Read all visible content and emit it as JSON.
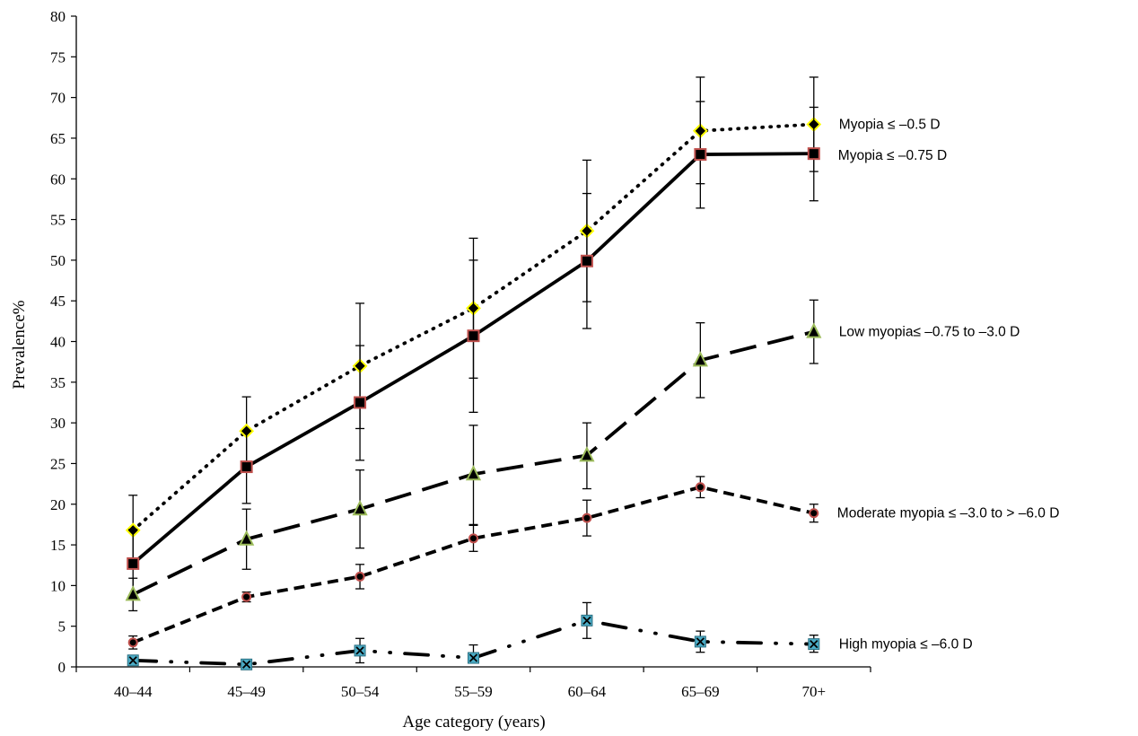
{
  "chart_data": {
    "type": "line",
    "xlabel": "Age category (years)",
    "ylabel": "Prevalence%",
    "categories": [
      "40–44",
      "45–49",
      "50–54",
      "55–59",
      "60–64",
      "65–69",
      "70+"
    ],
    "ylim": [
      0,
      80
    ],
    "yticks": [
      "0",
      "5",
      "10",
      "15",
      "20",
      "25",
      "30",
      "35",
      "40",
      "45",
      "50",
      "55",
      "60",
      "65",
      "70",
      "75",
      "80"
    ],
    "grid": false,
    "legend": "inline labels at right end of each line",
    "series": [
      {
        "name": "Myopia ≤ –0.5 D",
        "values": [
          16.8,
          29.0,
          37.0,
          44.1,
          53.6,
          65.9,
          66.7
        ],
        "err_low": [
          12.7,
          24.6,
          29.3,
          35.5,
          44.9,
          59.4,
          60.9
        ],
        "err_high": [
          21.1,
          33.2,
          44.7,
          52.7,
          62.3,
          72.5,
          72.5
        ],
        "marker": "diamond",
        "marker_fill": "#ffff00",
        "marker_stroke": "#a6a600",
        "dash": "dotted"
      },
      {
        "name": "Myopia ≤ –0.75 D",
        "values": [
          12.7,
          24.6,
          32.5,
          40.7,
          49.9,
          63.0,
          63.1
        ],
        "err_low": [
          8.6,
          20.1,
          25.4,
          31.3,
          41.6,
          56.4,
          57.3
        ],
        "err_high": [
          16.9,
          29.0,
          39.5,
          50.0,
          58.2,
          69.5,
          68.8
        ],
        "marker": "square",
        "marker_fill": "#000000",
        "marker_stroke": "#c0504d",
        "dash": "solid"
      },
      {
        "name": "Low myopia≤ –0.75 to –3.0 D",
        "values": [
          8.9,
          15.7,
          19.4,
          23.7,
          26.0,
          37.7,
          41.2
        ],
        "err_low": [
          6.9,
          12.0,
          14.6,
          17.5,
          21.9,
          33.1,
          37.3
        ],
        "err_high": [
          10.9,
          19.4,
          24.2,
          29.7,
          30.0,
          42.3,
          45.1
        ],
        "marker": "triangle",
        "marker_fill": "#000000",
        "marker_stroke": "#9bbb59",
        "dash": "long-dash"
      },
      {
        "name": "Moderate myopia ≤ –3.0 to > –6.0 D",
        "values": [
          3.0,
          8.6,
          11.1,
          15.8,
          18.3,
          22.1,
          18.9
        ],
        "err_low": [
          2.2,
          8.0,
          9.6,
          14.2,
          16.1,
          20.8,
          17.8
        ],
        "err_high": [
          3.8,
          9.2,
          12.6,
          17.4,
          20.5,
          23.4,
          20.0
        ],
        "marker": "circle",
        "marker_fill": "#000000",
        "marker_stroke": "#c0504d",
        "dash": "short-dash"
      },
      {
        "name": "High myopia ≤ –6.0 D",
        "values": [
          0.8,
          0.3,
          2.0,
          1.1,
          5.7,
          3.1,
          2.8
        ],
        "err_low": [
          0.3,
          0.1,
          0.5,
          0.5,
          3.5,
          1.8,
          1.8
        ],
        "err_high": [
          1.3,
          0.5,
          3.5,
          2.7,
          7.9,
          4.4,
          3.9
        ],
        "marker": "x-square",
        "marker_fill": "#4bacc6",
        "marker_stroke": "#000000",
        "dash": "dash-dot-dot"
      }
    ]
  }
}
